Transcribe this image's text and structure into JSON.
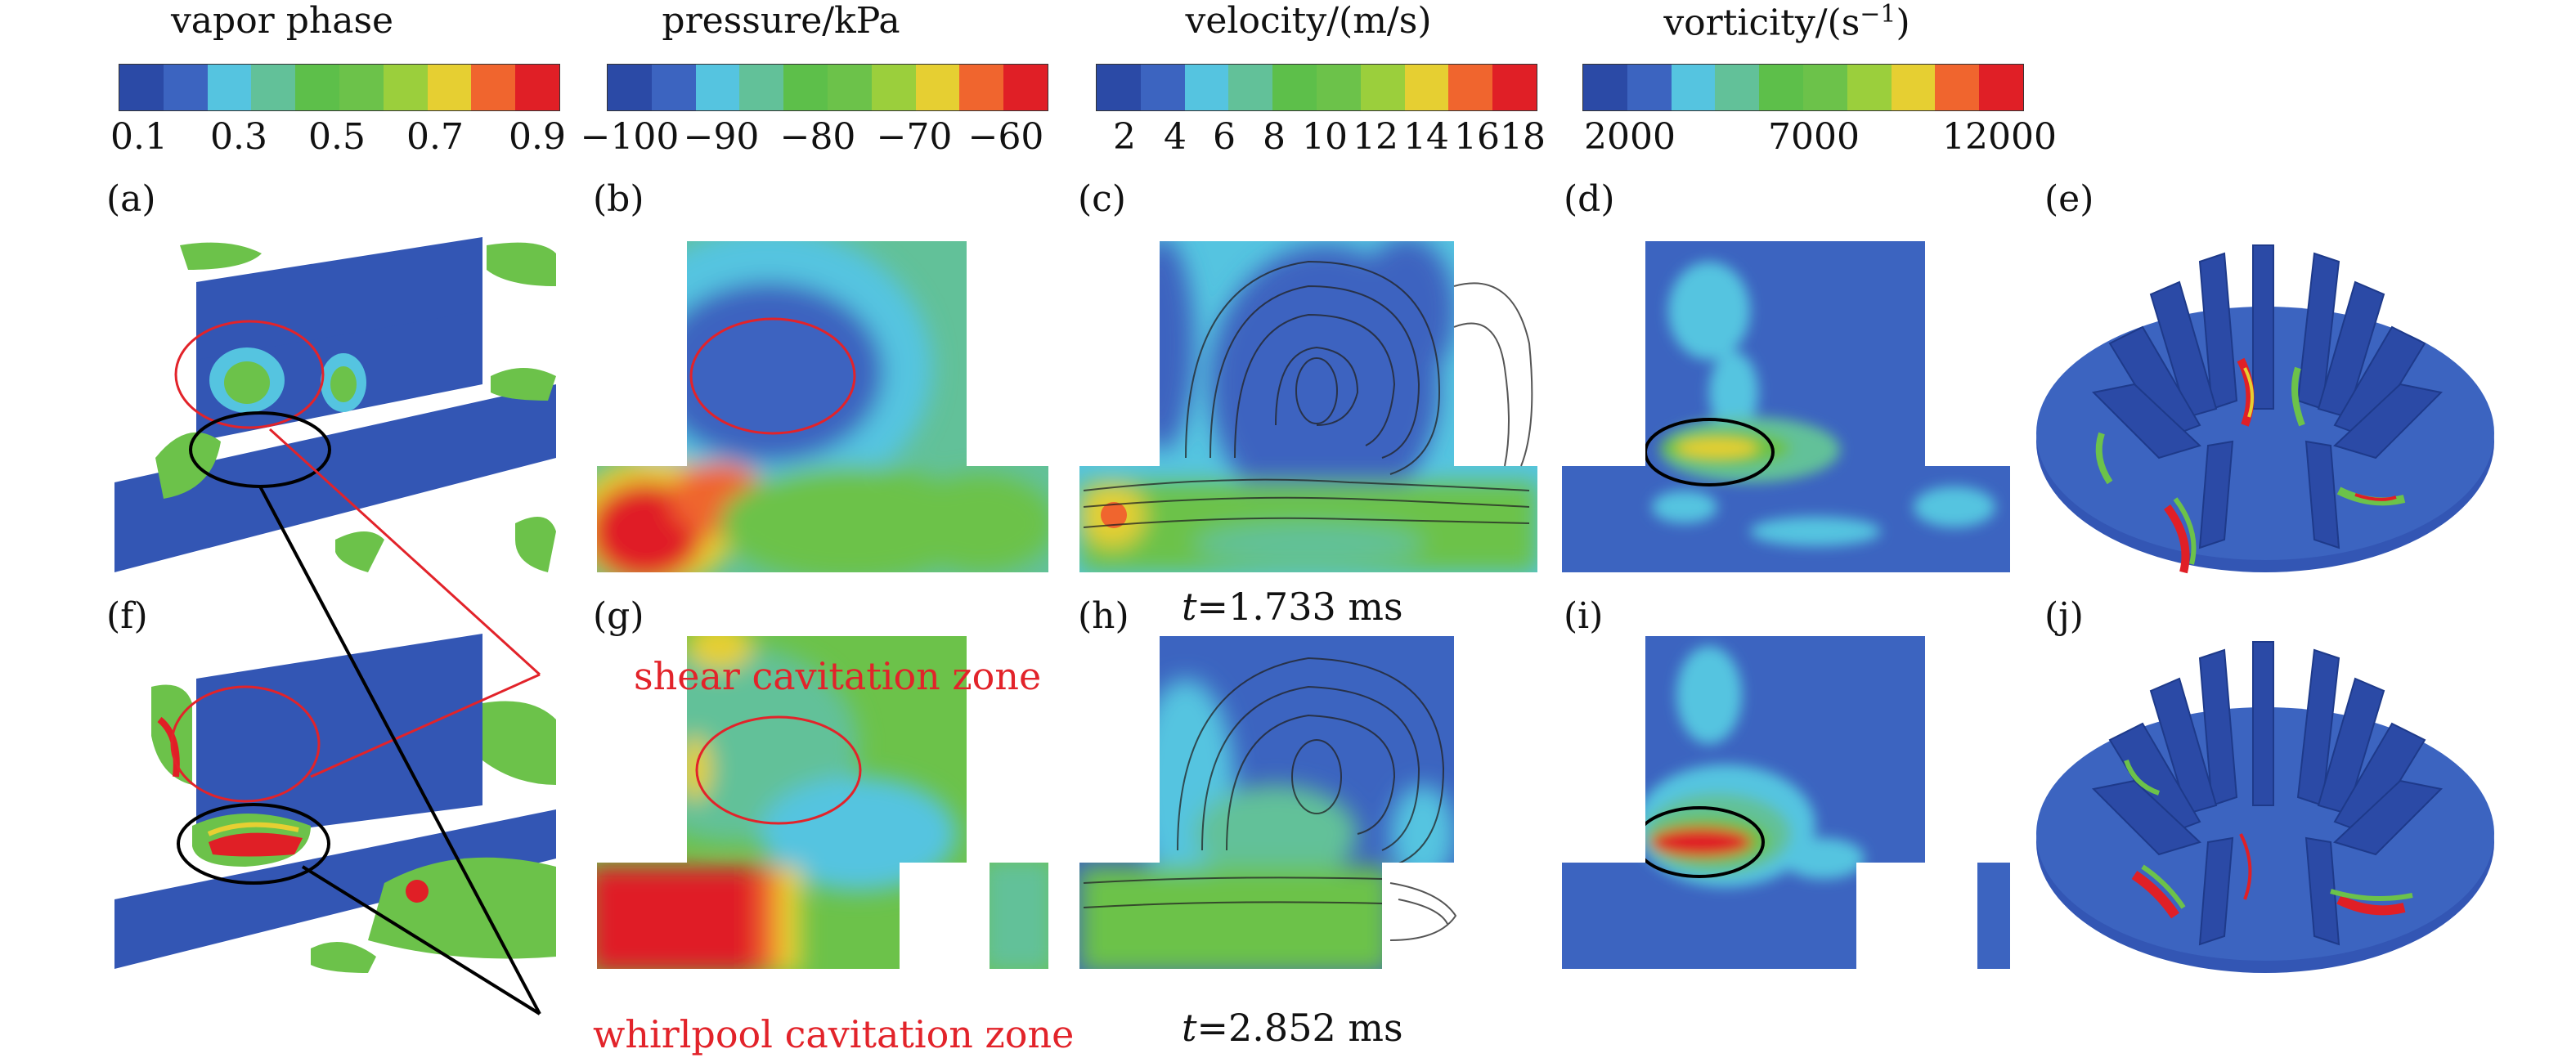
{
  "colors": {
    "scale": [
      "#2b4aa6",
      "#3c64c0",
      "#55c4e0",
      "#62c199",
      "#5dbf4a",
      "#6cc24a",
      "#9bcf3c",
      "#e6cf32",
      "#f0652e",
      "#e01f26"
    ],
    "domain_blue": "#3356b4",
    "callout_red": "#e2232a",
    "callout_black": "#000000"
  },
  "legends": [
    {
      "title": "vapor phase",
      "ticks": [
        "0.1",
        "0.3",
        "0.5",
        "0.7",
        "0.9"
      ]
    },
    {
      "title": "pressure/kPa",
      "ticks": [
        "−100",
        "−90",
        "−80",
        "−70",
        "−60"
      ]
    },
    {
      "title": "velocity/(m/s)",
      "ticks": [
        "2",
        "4",
        "6",
        "8",
        "10",
        "12",
        "14",
        "16",
        "18"
      ]
    },
    {
      "title": "vorticity/(s",
      "title_sup": "−1",
      "title_end": ")",
      "ticks": [
        "2000",
        "7000",
        "12000"
      ]
    }
  ],
  "panels": {
    "a": "(a)",
    "b": "(b)",
    "c": "(c)",
    "d": "(d)",
    "e": "(e)",
    "f": "(f)",
    "g": "(g)",
    "h": "(h)",
    "i": "(i)",
    "j": "(j)"
  },
  "captions": {
    "t1_var": "t",
    "t1_rest": "=1.733 ms",
    "t2_var": "t",
    "t2_rest": "=2.852 ms"
  },
  "callouts": {
    "shear": "shear cavitation zone",
    "whirlpool": "whirlpool cavitation zone"
  }
}
